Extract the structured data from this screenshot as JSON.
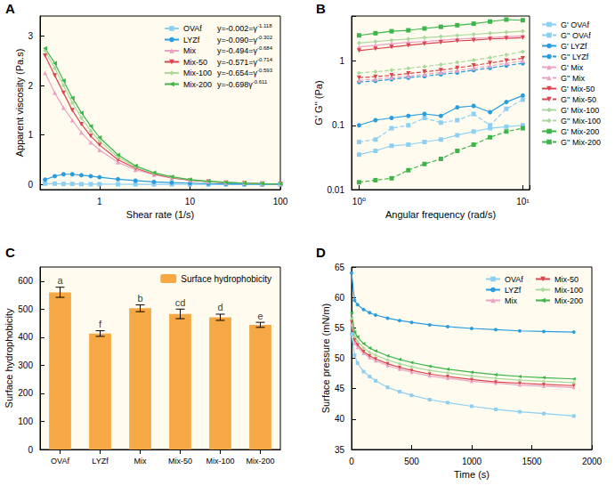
{
  "chart_data": [
    {
      "panel_label": "A",
      "type": "line",
      "x_label": "Shear rate (1/s)",
      "y_label": "Apparent viscosity (Pa.s)",
      "log": "x",
      "grid": false,
      "legend": "upper right",
      "x": [
        0.25,
        0.32,
        0.4,
        0.5,
        0.63,
        0.8,
        1,
        1.6,
        2.5,
        4,
        6.3,
        10,
        16,
        25,
        40,
        63,
        100
      ],
      "xlim": [
        0.22,
        100
      ],
      "xticks": [
        1,
        10,
        100
      ],
      "ylim": [
        -0.1,
        3.4
      ],
      "yticks": [
        0,
        1,
        2,
        3
      ],
      "series": [
        {
          "name": "OVAf",
          "color": "#8ccff2",
          "marker": "square",
          "equation": "y=-0.002=γ",
          "exponent": "-1.118",
          "values": [
            0.02,
            0.02,
            0.015,
            0.015,
            0.01,
            0.01,
            0.01,
            0.008,
            0.006,
            0.005,
            0.004,
            0.003,
            0.003,
            0.002,
            0.002,
            0.002,
            0.002
          ]
        },
        {
          "name": "LYZf",
          "color": "#2a9de0",
          "marker": "circle",
          "equation": "y=-0.090=γ",
          "exponent": "-0.302",
          "values": [
            0.1,
            0.17,
            0.21,
            0.21,
            0.19,
            0.17,
            0.15,
            0.11,
            0.08,
            0.055,
            0.04,
            0.03,
            0.02,
            0.015,
            0.01,
            0.008,
            0.006
          ]
        },
        {
          "name": "Mix",
          "color": "#eba2c4",
          "marker": "triangle",
          "equation": "y=-0.494=γ",
          "exponent": "-0.684",
          "values": [
            2.25,
            1.85,
            1.55,
            1.3,
            1.05,
            0.85,
            0.7,
            0.45,
            0.3,
            0.2,
            0.13,
            0.09,
            0.06,
            0.04,
            0.03,
            0.02,
            0.015
          ]
        },
        {
          "name": "Mix-50",
          "color": "#d9444f",
          "marker": "triangle-down",
          "equation": "y=-0.571=γ",
          "exponent": "-0.714",
          "values": [
            2.6,
            2.2,
            1.85,
            1.5,
            1.22,
            0.98,
            0.8,
            0.5,
            0.33,
            0.21,
            0.14,
            0.09,
            0.06,
            0.04,
            0.03,
            0.02,
            0.015
          ]
        },
        {
          "name": "Mix-100",
          "color": "#a9d99b",
          "marker": "diamond",
          "equation": "y=-0.654=γ",
          "exponent": "-0.593",
          "values": [
            2.7,
            2.35,
            2.0,
            1.65,
            1.35,
            1.08,
            0.88,
            0.55,
            0.36,
            0.23,
            0.15,
            0.1,
            0.065,
            0.045,
            0.03,
            0.02,
            0.015
          ]
        },
        {
          "name": "Mix-200",
          "color": "#3db54a",
          "marker": "triangle-left",
          "equation": "y=-0.698γ",
          "exponent": "-0.611",
          "values": [
            2.75,
            2.45,
            2.1,
            1.75,
            1.45,
            1.18,
            0.95,
            0.6,
            0.38,
            0.24,
            0.16,
            0.1,
            0.07,
            0.045,
            0.03,
            0.02,
            0.015
          ]
        }
      ]
    },
    {
      "panel_label": "B",
      "type": "line",
      "x_label": "Angular frequency (rad/s)",
      "y_label": "G' G'' (Pa)",
      "log": true,
      "grid": false,
      "legend": "right",
      "x": [
        1,
        1.26,
        1.58,
        2,
        2.51,
        3.16,
        3.98,
        5.01,
        6.31,
        7.94,
        10
      ],
      "xlim": [
        0.9,
        11
      ],
      "xticks": [
        {
          "value": 1,
          "label": "10⁰"
        },
        {
          "value": 10,
          "label": "10¹"
        }
      ],
      "ylim": [
        0.01,
        5
      ],
      "yticks": [
        0.01,
        0.1,
        1
      ],
      "series": [
        {
          "name": "G' OVAf",
          "color": "#8ccff2",
          "marker": "square",
          "line_style": "solid",
          "values": [
            0.035,
            0.04,
            0.048,
            0.05,
            0.055,
            0.06,
            0.07,
            0.08,
            0.09,
            0.095,
            0.1
          ]
        },
        {
          "name": "G'' OVAf",
          "color": "#8ccff2",
          "marker": "square",
          "line_style": "dashed",
          "values": [
            0.055,
            0.06,
            0.09,
            0.1,
            0.13,
            0.11,
            0.12,
            0.15,
            0.1,
            0.18,
            0.25
          ]
        },
        {
          "name": "G' LYZf",
          "color": "#2a9de0",
          "marker": "circle",
          "line_style": "solid",
          "values": [
            0.1,
            0.12,
            0.13,
            0.14,
            0.15,
            0.14,
            0.19,
            0.2,
            0.16,
            0.23,
            0.29
          ]
        },
        {
          "name": "G'' LYZf",
          "color": "#2a9de0",
          "marker": "circle",
          "line_style": "dashed",
          "values": [
            0.47,
            0.49,
            0.52,
            0.55,
            0.58,
            0.62,
            0.66,
            0.72,
            0.78,
            0.85,
            0.92
          ]
        },
        {
          "name": "G' Mix",
          "color": "#eba2c4",
          "marker": "triangle",
          "line_style": "solid",
          "values": [
            1.65,
            1.75,
            1.85,
            1.95,
            2.0,
            2.1,
            2.2,
            2.25,
            2.3,
            2.4,
            2.45
          ]
        },
        {
          "name": "G'' Mix",
          "color": "#eba2c4",
          "marker": "triangle",
          "line_style": "dashed",
          "values": [
            0.5,
            0.52,
            0.55,
            0.58,
            0.62,
            0.66,
            0.71,
            0.77,
            0.84,
            0.92,
            1.0
          ]
        },
        {
          "name": "G' Mix-50",
          "color": "#d9444f",
          "marker": "triangle-down",
          "line_style": "solid",
          "values": [
            1.45,
            1.55,
            1.65,
            1.75,
            1.85,
            1.95,
            2.05,
            2.1,
            2.2,
            2.25,
            2.3
          ]
        },
        {
          "name": "G'' Mix-50",
          "color": "#d9444f",
          "marker": "triangle-down",
          "line_style": "dashed",
          "values": [
            0.55,
            0.57,
            0.6,
            0.64,
            0.68,
            0.72,
            0.78,
            0.85,
            0.93,
            1.02,
            1.1
          ]
        },
        {
          "name": "G' Mix-100",
          "color": "#a9d99b",
          "marker": "diamond",
          "line_style": "solid",
          "values": [
            1.9,
            2.0,
            2.1,
            2.2,
            2.3,
            2.4,
            2.5,
            2.6,
            2.7,
            2.8,
            2.9
          ]
        },
        {
          "name": "G'' Mix-100",
          "color": "#a9d99b",
          "marker": "diamond",
          "line_style": "dashed",
          "values": [
            0.65,
            0.68,
            0.72,
            0.77,
            0.82,
            0.88,
            0.95,
            1.03,
            1.13,
            1.25,
            1.4
          ]
        },
        {
          "name": "G' Mix-200",
          "color": "#3db54a",
          "marker": "square",
          "line_style": "solid",
          "values": [
            2.5,
            2.7,
            2.9,
            3.0,
            3.2,
            3.4,
            3.6,
            3.8,
            4.1,
            4.4,
            4.3
          ]
        },
        {
          "name": "G'' Mix-200",
          "color": "#3db54a",
          "marker": "square",
          "line_style": "dashed",
          "values": [
            0.013,
            0.014,
            0.015,
            0.02,
            0.025,
            0.03,
            0.04,
            0.05,
            0.065,
            0.08,
            0.09
          ]
        }
      ]
    },
    {
      "panel_label": "C",
      "type": "bar",
      "y_label": "Surface hydrophobicity",
      "grid": false,
      "legend": "upper right",
      "categories": [
        "OVAf",
        "LYZf",
        "Mix",
        "Mix-50",
        "Mix-100",
        "Mix-200"
      ],
      "ylim": [
        0,
        650
      ],
      "yticks": [
        0,
        100,
        200,
        300,
        400,
        500,
        600
      ],
      "series": [
        {
          "name": "Surface hydrophobicity",
          "color": "#f5a843",
          "values": [
            560,
            413,
            503,
            483,
            471,
            444
          ],
          "errors": [
            18,
            10,
            12,
            17,
            11,
            9
          ],
          "significance": [
            "a",
            "f",
            "b",
            "cd",
            "d",
            "e"
          ]
        }
      ]
    },
    {
      "panel_label": "D",
      "type": "line",
      "x_label": "Time (s)",
      "y_label": "Surface pressure (mN/m)",
      "grid": false,
      "legend": "upper right",
      "x": [
        0,
        25,
        50,
        100,
        150,
        200,
        300,
        400,
        500,
        650,
        800,
        1000,
        1200,
        1400,
        1600,
        1850
      ],
      "xlim": [
        0,
        2000
      ],
      "xticks": [
        0,
        500,
        1000,
        1500,
        2000
      ],
      "ylim": [
        35,
        65
      ],
      "yticks": [
        35,
        40,
        45,
        50,
        55,
        60,
        65
      ],
      "series": [
        {
          "name": "OVAf",
          "color": "#8ccff2",
          "marker": "square",
          "values": [
            54,
            50.5,
            49.2,
            47.8,
            47,
            46.3,
            45.2,
            44.5,
            43.9,
            43.2,
            42.7,
            42.1,
            41.6,
            41.2,
            40.9,
            40.5
          ]
        },
        {
          "name": "LYZf",
          "color": "#2a9de0",
          "marker": "circle",
          "values": [
            64,
            59.5,
            58.8,
            58,
            57.5,
            57.1,
            56.6,
            56.2,
            55.9,
            55.5,
            55.2,
            54.9,
            54.7,
            54.5,
            54.4,
            54.3
          ]
        },
        {
          "name": "Mix",
          "color": "#eba2c4",
          "marker": "triangle",
          "values": [
            55.5,
            52.5,
            51.8,
            50.8,
            50.1,
            49.6,
            48.8,
            48.2,
            47.7,
            47.1,
            46.7,
            46.2,
            45.9,
            45.6,
            45.4,
            45.2
          ]
        },
        {
          "name": "Mix-50",
          "color": "#d9444f",
          "marker": "triangle-down",
          "values": [
            56,
            53,
            52.2,
            51.1,
            50.4,
            49.9,
            49.1,
            48.5,
            48,
            47.4,
            47,
            46.5,
            46.1,
            45.9,
            45.7,
            45.5
          ]
        },
        {
          "name": "Mix-100",
          "color": "#a9d99b",
          "marker": "diamond",
          "values": [
            56.5,
            53.6,
            52.8,
            51.7,
            51,
            50.5,
            49.7,
            49.1,
            48.6,
            48,
            47.6,
            47.1,
            46.7,
            46.4,
            46.2,
            46
          ]
        },
        {
          "name": "Mix-200",
          "color": "#3db54a",
          "marker": "triangle-left",
          "values": [
            57.5,
            54.3,
            53.5,
            52.4,
            51.7,
            51.2,
            50.4,
            49.8,
            49.3,
            48.7,
            48.2,
            47.7,
            47.3,
            47,
            46.8,
            46.6
          ]
        }
      ]
    }
  ]
}
